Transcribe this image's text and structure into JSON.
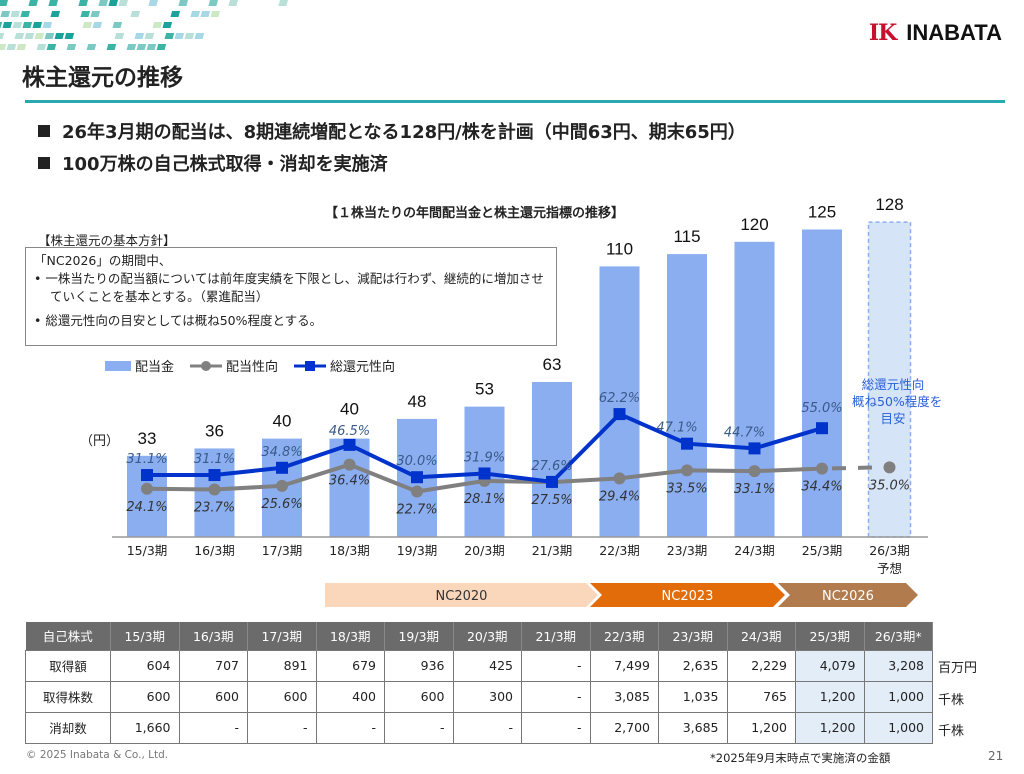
{
  "header": {
    "title": "株主還元の推移",
    "logo_mark": "IK",
    "logo_name": "INABATA"
  },
  "bullets": [
    "26年3月期の配当は、8期連続増配となる128円/株を計画（中間63円、期末65円）",
    "100万株の自己株式取得・消却を実施済"
  ],
  "policy": {
    "heading": "【株主還元の基本方針】",
    "lines": [
      "「NC2026」の期間中、",
      "•  一株当たりの配当額については前年度実績を下限とし、減配は行わず、継続的に増加させていくことを基本とする。（累進配当）",
      "•  総還元性向の目安としては概ね50%程度とする。"
    ]
  },
  "chart_data": {
    "type": "bar",
    "title": "【１株当たりの年間配当金と株主還元指標の推移】",
    "unit_label": "（円）",
    "categories": [
      "15/3期",
      "16/3期",
      "17/3期",
      "18/3期",
      "19/3期",
      "20/3期",
      "21/3期",
      "22/3期",
      "23/3期",
      "24/3期",
      "25/3期",
      "26/3期"
    ],
    "category_sublabels": {
      "11": "予想"
    },
    "legend": [
      "配当金",
      "配当性向",
      "総還元性向"
    ],
    "series": [
      {
        "name": "配当金",
        "type": "bar",
        "values": [
          33,
          36,
          40,
          40,
          48,
          53,
          63,
          110,
          115,
          120,
          125,
          128
        ],
        "forecast_index": 11
      },
      {
        "name": "配当性向",
        "type": "line",
        "unit": "%",
        "values": [
          24.1,
          23.7,
          25.6,
          36.4,
          22.7,
          28.1,
          27.5,
          29.4,
          33.5,
          33.1,
          34.4,
          35.0
        ],
        "forecast_index": 11
      },
      {
        "name": "総還元性向",
        "type": "line",
        "unit": "%",
        "values": [
          31.1,
          31.1,
          34.8,
          46.5,
          30.0,
          31.9,
          27.6,
          62.2,
          47.1,
          44.7,
          55.0,
          null
        ]
      }
    ],
    "annotation": "総還元性向\n概ね50%程度を\n目安",
    "phases": [
      {
        "label": "NC2020",
        "from": "18/3期",
        "to": "22/3期"
      },
      {
        "label": "NC2023",
        "from": "22/3期",
        "to": "25/3期"
      },
      {
        "label": "NC2026",
        "from": "25/3期",
        "to": "26/3期"
      }
    ],
    "colors": {
      "bar": "#8aaef0",
      "forecast_bar": "#d6e4f8",
      "payout": "#808080",
      "total": "#0033cc",
      "nc2020": "#fad6bb",
      "nc2023": "#e36c0a",
      "nc2026": "#b27b4e"
    }
  },
  "annotation_lines": [
    "総還元性向",
    "概ね50%程度を",
    "目安"
  ],
  "table": {
    "headers": [
      "自己株式",
      "15/3期",
      "16/3期",
      "17/3期",
      "18/3期",
      "19/3期",
      "20/3期",
      "21/3期",
      "22/3期",
      "23/3期",
      "24/3期",
      "25/3期",
      "26/3期*"
    ],
    "rows": [
      {
        "label": "取得額",
        "values": [
          "604",
          "707",
          "891",
          "679",
          "936",
          "425",
          "-",
          "7,499",
          "2,635",
          "2,229",
          "4,079",
          "3,208"
        ],
        "unit": "百万円"
      },
      {
        "label": "取得株数",
        "values": [
          "600",
          "600",
          "600",
          "400",
          "600",
          "300",
          "-",
          "3,085",
          "1,035",
          "765",
          "1,200",
          "1,000"
        ],
        "unit": "千株"
      },
      {
        "label": "消却数",
        "values": [
          "1,660",
          "-",
          "-",
          "-",
          "-",
          "-",
          "-",
          "2,700",
          "3,685",
          "1,200",
          "1,200",
          "1,000"
        ],
        "unit": "千株"
      }
    ]
  },
  "footer": {
    "copyright": "© 2025 Inabata & Co., Ltd.",
    "footnote": "*2025年9月末時点で実施済の金額",
    "page": "21"
  }
}
